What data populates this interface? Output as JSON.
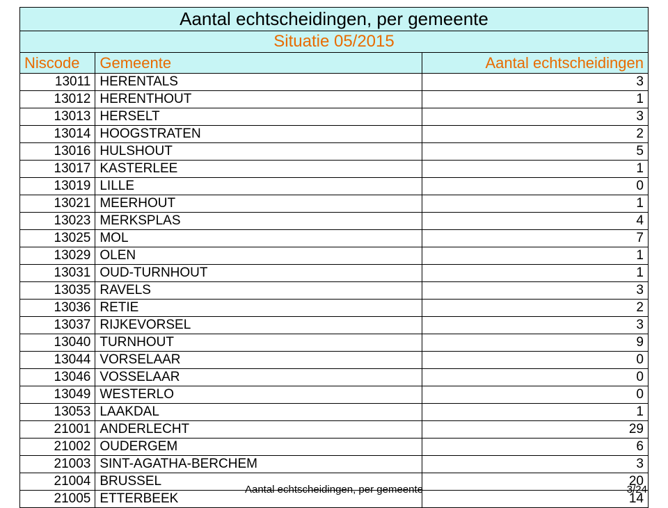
{
  "title": "Aantal echtscheidingen, per gemeente",
  "subtitle": "Situatie 05/2015",
  "columns": {
    "code": "Niscode",
    "name": "Gemeente",
    "value": "Aantal echtscheidingen"
  },
  "col_widths": {
    "code_pct": 12,
    "name_pct": 52,
    "value_pct": 36
  },
  "colors": {
    "header_bg": "#c7f5f5",
    "accent": "#e86b00",
    "border": "#000000",
    "text": "#000000",
    "background": "#ffffff"
  },
  "fonts": {
    "title_size": 26,
    "subtitle_size": 24,
    "header_size": 22,
    "body_size": 19,
    "footer_size": 15
  },
  "rows": [
    {
      "code": "13011",
      "name": "HERENTALS",
      "value": "3"
    },
    {
      "code": "13012",
      "name": "HERENTHOUT",
      "value": "1"
    },
    {
      "code": "13013",
      "name": "HERSELT",
      "value": "3"
    },
    {
      "code": "13014",
      "name": "HOOGSTRATEN",
      "value": "2"
    },
    {
      "code": "13016",
      "name": "HULSHOUT",
      "value": "5"
    },
    {
      "code": "13017",
      "name": "KASTERLEE",
      "value": "1"
    },
    {
      "code": "13019",
      "name": "LILLE",
      "value": "0"
    },
    {
      "code": "13021",
      "name": "MEERHOUT",
      "value": "1"
    },
    {
      "code": "13023",
      "name": "MERKSPLAS",
      "value": "4"
    },
    {
      "code": "13025",
      "name": "MOL",
      "value": "7"
    },
    {
      "code": "13029",
      "name": "OLEN",
      "value": "1"
    },
    {
      "code": "13031",
      "name": "OUD-TURNHOUT",
      "value": "1"
    },
    {
      "code": "13035",
      "name": "RAVELS",
      "value": "3"
    },
    {
      "code": "13036",
      "name": "RETIE",
      "value": "2"
    },
    {
      "code": "13037",
      "name": "RIJKEVORSEL",
      "value": "3"
    },
    {
      "code": "13040",
      "name": "TURNHOUT",
      "value": "9"
    },
    {
      "code": "13044",
      "name": "VORSELAAR",
      "value": "0"
    },
    {
      "code": "13046",
      "name": "VOSSELAAR",
      "value": "0"
    },
    {
      "code": "13049",
      "name": "WESTERLO",
      "value": "0"
    },
    {
      "code": "13053",
      "name": "LAAKDAL",
      "value": "1"
    },
    {
      "code": "21001",
      "name": "ANDERLECHT",
      "value": "29"
    },
    {
      "code": "21002",
      "name": "OUDERGEM",
      "value": "6"
    },
    {
      "code": "21003",
      "name": "SINT-AGATHA-BERCHEM",
      "value": "3"
    },
    {
      "code": "21004",
      "name": "BRUSSEL",
      "value": "20"
    },
    {
      "code": "21005",
      "name": "ETTERBEEK",
      "value": "14"
    }
  ],
  "footer": {
    "text": "Aantal echtscheidingen, per gemeente",
    "page": "3/24"
  }
}
